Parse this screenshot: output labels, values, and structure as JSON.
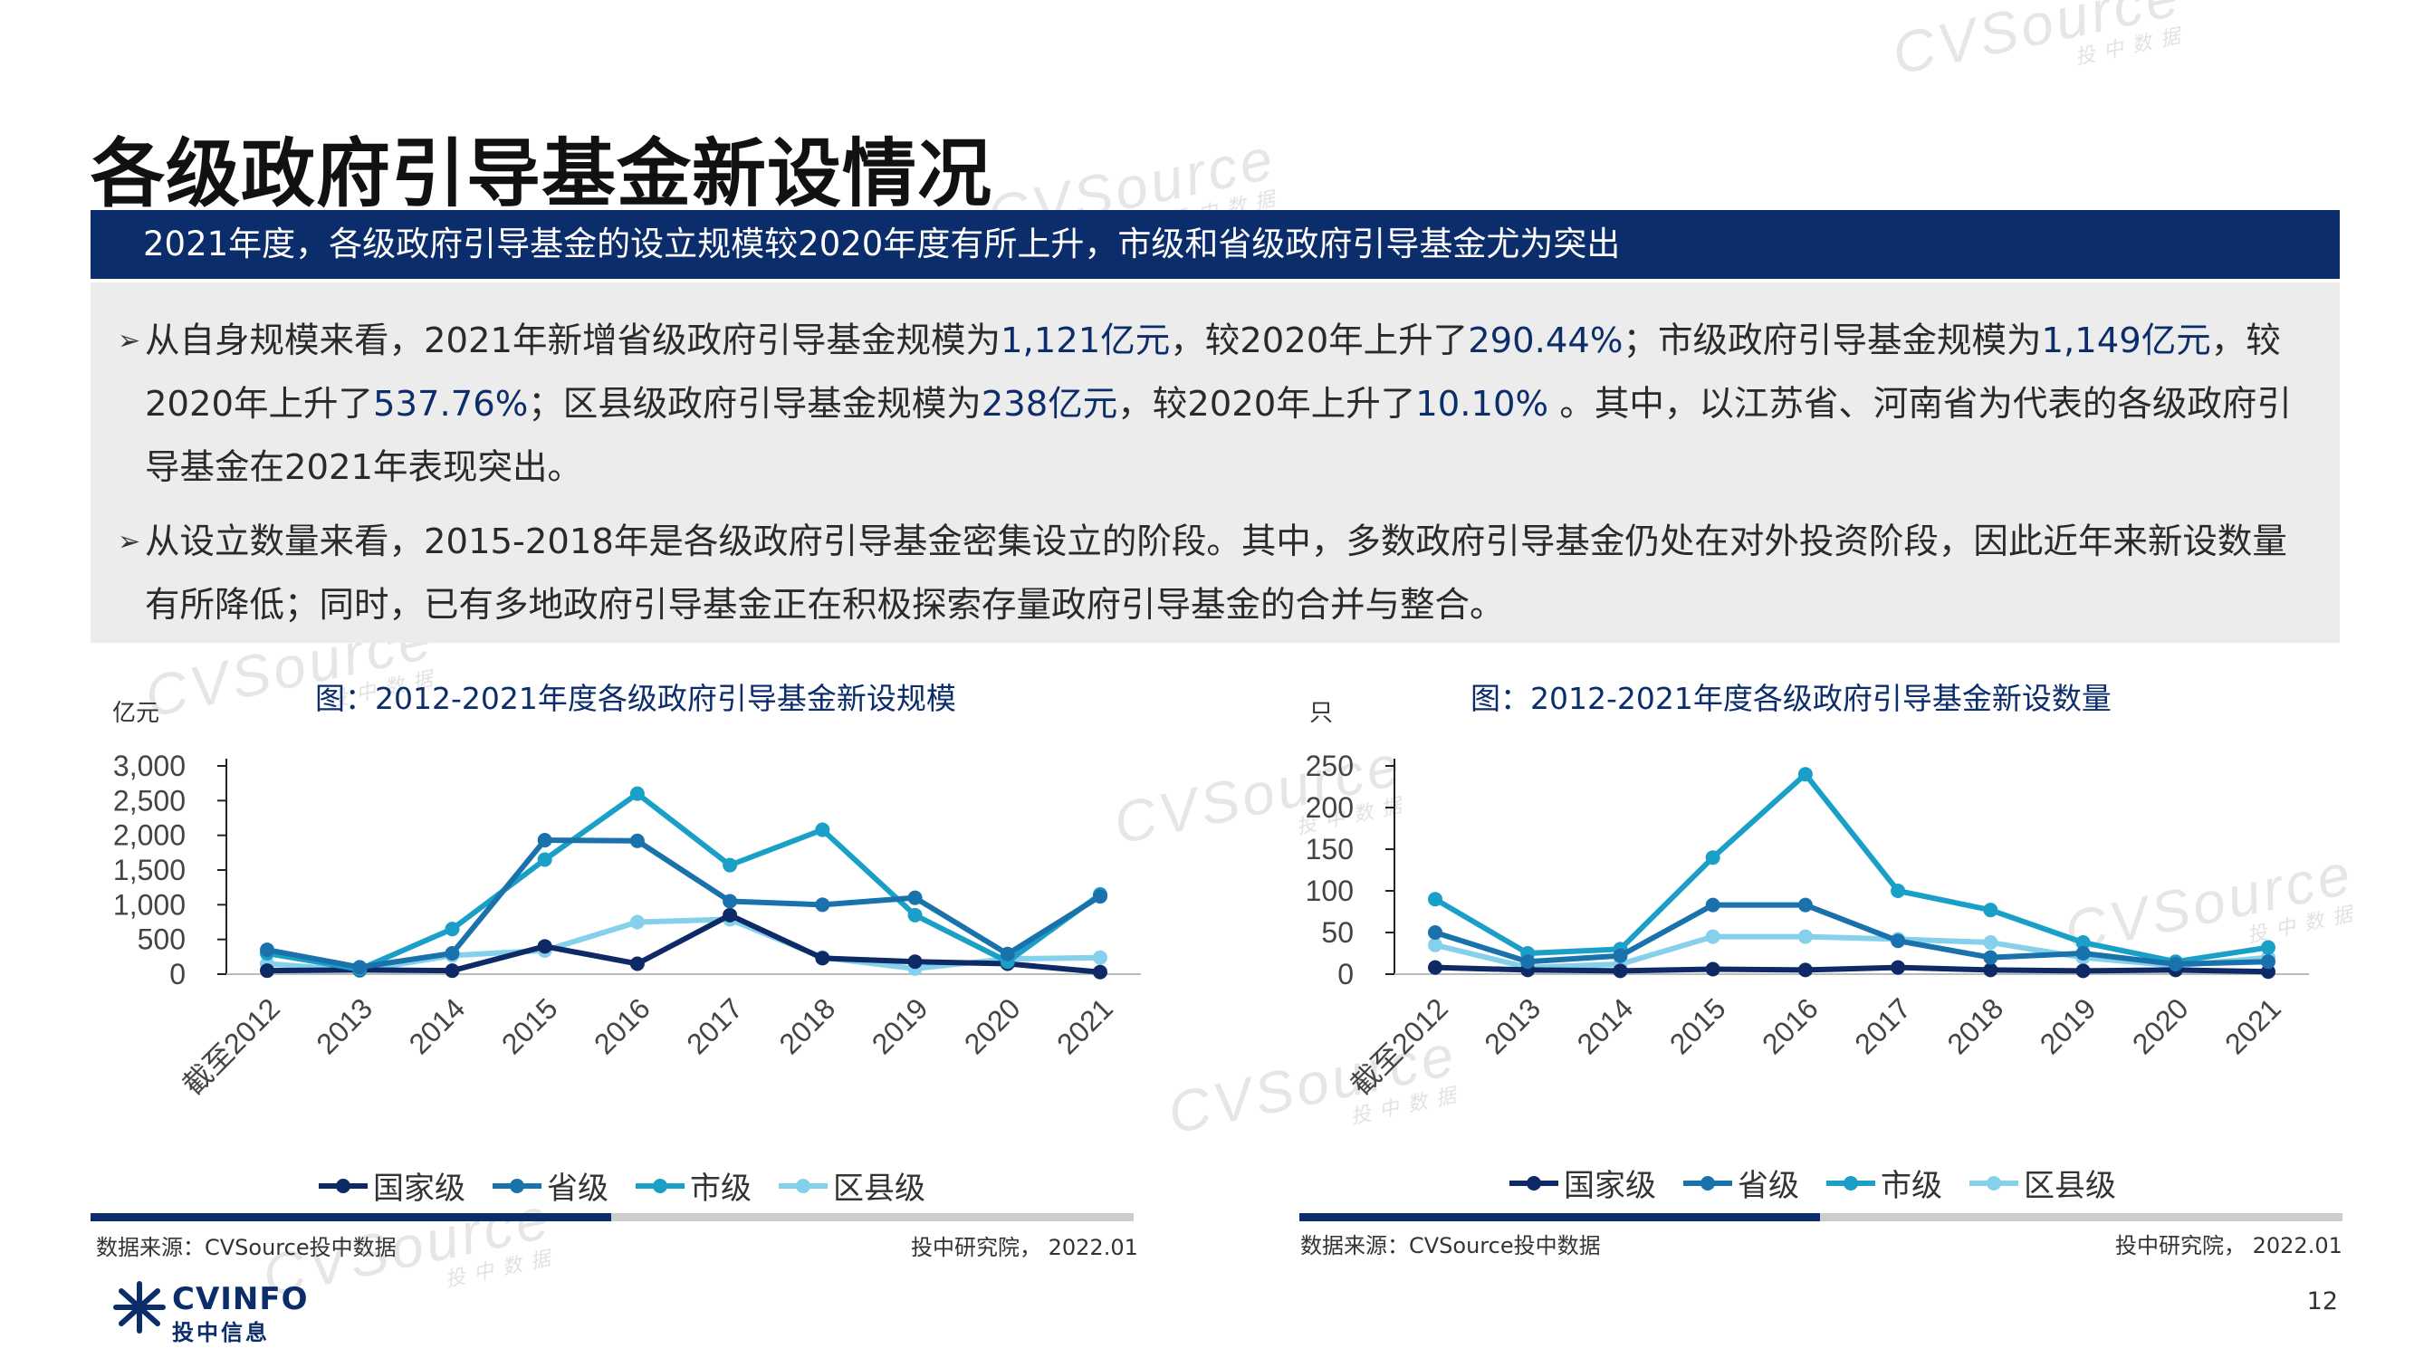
{
  "page": {
    "title": "各级政府引导基金新设情况",
    "banner": "2021年度，各级政府引导基金的设立规模较2020年度有所上升，市级和省级政府引导基金尤为突出",
    "page_number": "12",
    "watermark": "CVSource",
    "watermark_sub": "投中数据"
  },
  "summary": {
    "b1": [
      {
        "t": "从自身规模来看，2021年新增省级政府引导基金规模为"
      },
      {
        "t": "1,121亿元",
        "hl": true
      },
      {
        "t": "，较2020年上升了"
      },
      {
        "t": "290.44%",
        "hl": true
      },
      {
        "t": "；市级政府引导基金规模为"
      },
      {
        "t": "1,149亿元",
        "hl": true
      },
      {
        "t": "，较2020年上升了"
      },
      {
        "t": "537.76%",
        "hl": true
      },
      {
        "t": "；区县级政府引导基金规模为"
      },
      {
        "t": "238亿元",
        "hl": true
      },
      {
        "t": "，较2020年上升了"
      },
      {
        "t": "10.10%",
        "hl": true
      },
      {
        "t": " 。其中，以江苏省、河南省为代表的各级政府引导基金在2021年表现突出。"
      }
    ],
    "b2": "从设立数量来看，2015-2018年是各级政府引导基金密集设立的阶段。其中，多数政府引导基金仍处在对外投资阶段，因此近年来新设数量有所降低；同时，已有多地政府引导基金正在积极探索存量政府引导基金的合并与整合。"
  },
  "colors": {
    "navy": "#0c2d6b",
    "国家级": "#0d2a66",
    "省级": "#1a72ad",
    "市级": "#1aa0c6",
    "区县级": "#85d0ea"
  },
  "chart_data": [
    {
      "type": "line",
      "title": "图：2012-2021年度各级政府引导基金新设规模",
      "ylabel": "亿元",
      "categories": [
        "截至2012",
        "2013",
        "2014",
        "2015",
        "2016",
        "2017",
        "2018",
        "2019",
        "2020",
        "2021"
      ],
      "ylim": [
        0,
        3000
      ],
      "yticks": [
        "3,000",
        "2,500",
        "2,000",
        "1,500",
        "1,000",
        "500",
        "0"
      ],
      "ytick_values": [
        3000,
        2500,
        2000,
        1500,
        1000,
        500,
        0
      ],
      "series": [
        {
          "name": "国家级",
          "values": [
            50,
            60,
            50,
            400,
            150,
            850,
            230,
            180,
            150,
            30
          ]
        },
        {
          "name": "省级",
          "values": [
            350,
            100,
            300,
            1930,
            1920,
            1050,
            1000,
            1100,
            290,
            1121
          ]
        },
        {
          "name": "市级",
          "values": [
            300,
            70,
            650,
            1650,
            2600,
            1570,
            2080,
            850,
            180,
            1149
          ]
        },
        {
          "name": "区县级",
          "values": [
            150,
            50,
            270,
            340,
            750,
            790,
            240,
            80,
            220,
            238
          ]
        }
      ],
      "legend": "bottom",
      "source": "数据来源：CVSource投中数据",
      "credit": "投中研究院， 2022.01"
    },
    {
      "type": "line",
      "title": "图：2012-2021年度各级政府引导基金新设数量",
      "ylabel": "只",
      "categories": [
        "截至2012",
        "2013",
        "2014",
        "2015",
        "2016",
        "2017",
        "2018",
        "2019",
        "2020",
        "2021"
      ],
      "ylim": [
        0,
        250
      ],
      "yticks": [
        "250",
        "200",
        "150",
        "100",
        "50",
        "0"
      ],
      "ytick_values": [
        250,
        200,
        150,
        100,
        50,
        0
      ],
      "series": [
        {
          "name": "国家级",
          "values": [
            8,
            5,
            4,
            6,
            5,
            8,
            5,
            4,
            5,
            3
          ]
        },
        {
          "name": "省级",
          "values": [
            50,
            15,
            22,
            83,
            83,
            40,
            20,
            25,
            12,
            15
          ]
        },
        {
          "name": "市级",
          "values": [
            90,
            25,
            30,
            140,
            240,
            100,
            77,
            38,
            15,
            32
          ]
        },
        {
          "name": "区县级",
          "values": [
            35,
            8,
            12,
            45,
            45,
            42,
            38,
            20,
            10,
            20
          ]
        }
      ],
      "legend": "bottom",
      "source": "数据来源：CVSource投中数据",
      "credit": "投中研究院， 2022.01"
    }
  ]
}
